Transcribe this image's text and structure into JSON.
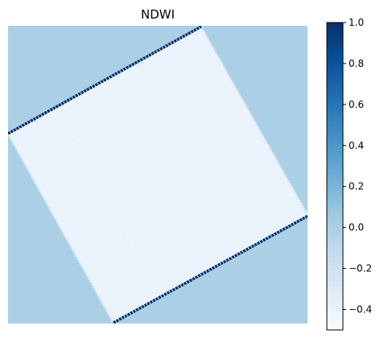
{
  "chart_data": {
    "type": "heatmap",
    "title": "NDWI",
    "xlabel": "",
    "ylabel": "",
    "axes_visible": false,
    "colormap": "Blues",
    "colorbar": {
      "vmin": -0.5,
      "vmax": 1.0,
      "ticks": [
        1.0,
        0.8,
        0.6,
        0.4,
        0.2,
        0.0,
        -0.2,
        -0.4
      ],
      "tick_labels": [
        "1.0",
        "0.8",
        "0.6",
        "0.4",
        "0.2",
        "0.0",
        "−0.2",
        "−0.4"
      ],
      "position": "right"
    },
    "regions": [
      {
        "name": "nodata-background",
        "value": 0.0,
        "color": "#abcfe5"
      },
      {
        "name": "scene-interior",
        "value": -0.48,
        "color": "#eaf3fb"
      },
      {
        "name": "scene-edge",
        "value": 1.0,
        "color": "#08306b"
      }
    ],
    "scene_rotation_deg": -27
  }
}
